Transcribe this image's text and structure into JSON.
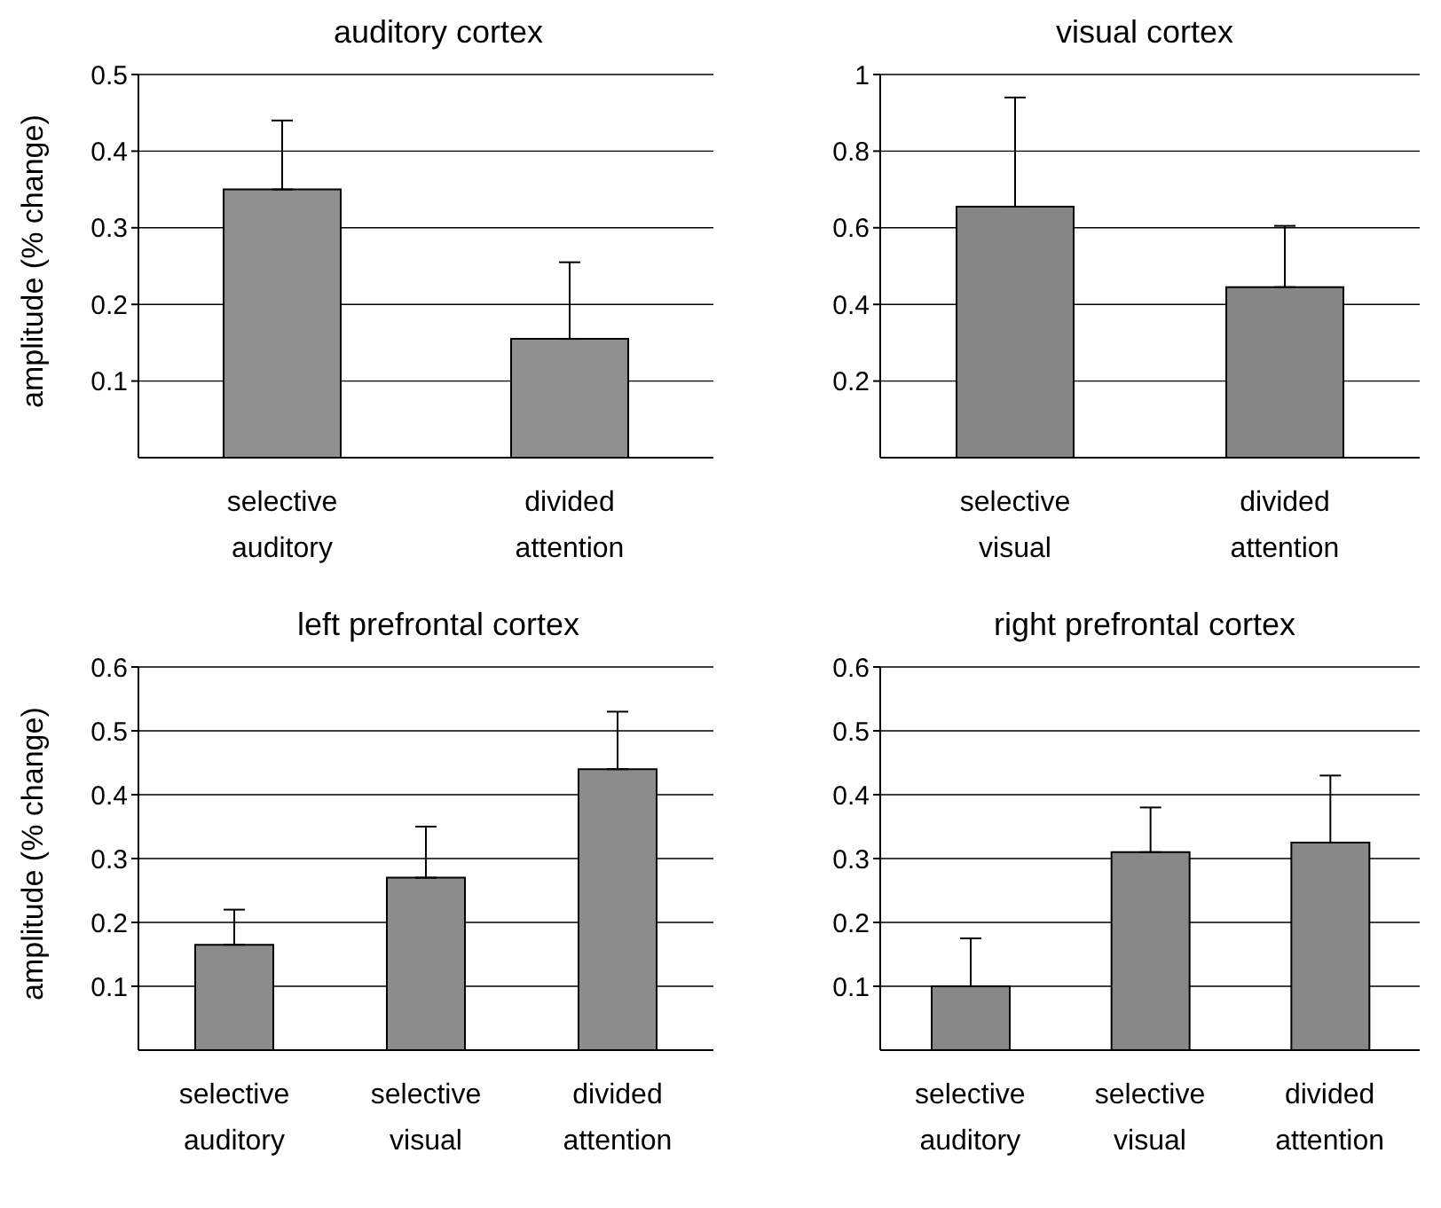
{
  "chart_data": [
    {
      "type": "bar",
      "title": "auditory cortex",
      "ylabel": "amplitude (% change)",
      "categories": [
        "selective auditory",
        "divided attention"
      ],
      "values": [
        0.35,
        0.155
      ],
      "errors": [
        [
          0.35,
          0.44
        ],
        [
          0.155,
          0.255
        ]
      ],
      "color": "#8f8f8f",
      "ylim": [
        0,
        0.5
      ],
      "yticks": [
        0.1,
        0.2,
        0.3,
        0.4,
        0.5
      ],
      "grid": "y"
    },
    {
      "type": "bar",
      "title": "visual cortex",
      "categories": [
        "selective visual",
        "divided attention"
      ],
      "values": [
        0.655,
        0.445
      ],
      "errors": [
        [
          0.655,
          0.94
        ],
        [
          0.445,
          0.605
        ]
      ],
      "color": "#858585",
      "ylim": [
        0,
        1
      ],
      "yticks": [
        0.2,
        0.4,
        0.6,
        0.8,
        1
      ],
      "grid": "y"
    },
    {
      "type": "bar",
      "title": "left prefrontal cortex",
      "ylabel": "amplitude (% change)",
      "categories": [
        "selective auditory",
        "selective visual",
        "divided attention"
      ],
      "values": [
        0.165,
        0.27,
        0.44
      ],
      "errors": [
        [
          0.165,
          0.22
        ],
        [
          0.27,
          0.35
        ],
        [
          0.44,
          0.53
        ]
      ],
      "color": "#8c8c8c",
      "ylim": [
        0,
        0.6
      ],
      "yticks": [
        0.1,
        0.2,
        0.3,
        0.4,
        0.5,
        0.6
      ],
      "grid": "y"
    },
    {
      "type": "bar",
      "title": "right prefrontal cortex",
      "categories": [
        "selective auditory",
        "selective visual",
        "divided attention"
      ],
      "values": [
        0.1,
        0.31,
        0.325
      ],
      "errors": [
        [
          0.1,
          0.175
        ],
        [
          0.31,
          0.38
        ],
        [
          0.325,
          0.43
        ]
      ],
      "color": "#888888",
      "ylim": [
        0,
        0.6
      ],
      "yticks": [
        0.1,
        0.2,
        0.3,
        0.4,
        0.5,
        0.6
      ],
      "grid": "y"
    }
  ]
}
